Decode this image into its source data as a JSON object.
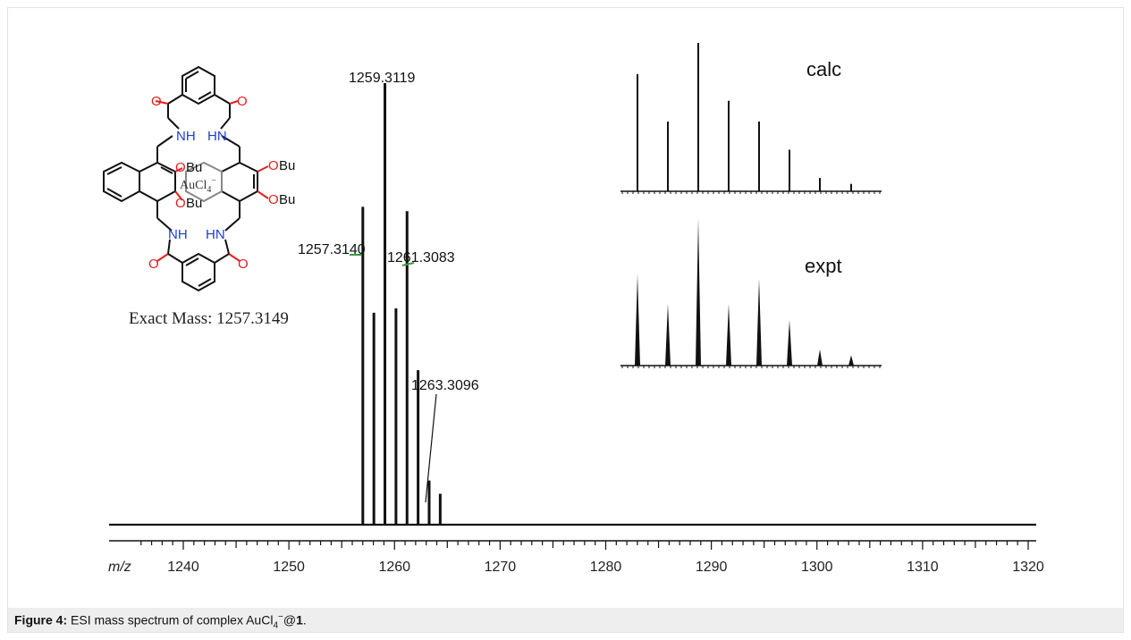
{
  "chart_data": {
    "type": "mass-spectrum",
    "xlabel": "m/z",
    "xlim": [
      1235,
      1321
    ],
    "x_ticks": [
      1240,
      1250,
      1260,
      1270,
      1280,
      1290,
      1300,
      1310,
      1320
    ],
    "peaks": [
      {
        "mz": 1257.0,
        "intensity": 0.72
      },
      {
        "mz": 1258.0,
        "intensity": 0.48
      },
      {
        "mz": 1259.0,
        "intensity": 1.0
      },
      {
        "mz": 1260.0,
        "intensity": 0.49
      },
      {
        "mz": 1261.0,
        "intensity": 0.71
      },
      {
        "mz": 1262.0,
        "intensity": 0.35
      },
      {
        "mz": 1263.0,
        "intensity": 0.1
      },
      {
        "mz": 1264.0,
        "intensity": 0.07
      }
    ],
    "peak_labels": [
      {
        "mz": 1257.0,
        "text": "1257.3140"
      },
      {
        "mz": 1259.0,
        "text": "1259.3119"
      },
      {
        "mz": 1261.0,
        "text": "1261.3083"
      },
      {
        "mz": 1263.0,
        "text": "1263.3096"
      }
    ],
    "insets": [
      {
        "label": "calc",
        "intensities": [
          0.79,
          0.47,
          1.0,
          0.61,
          0.47,
          0.28,
          0.09,
          0.05
        ]
      },
      {
        "label": "expt",
        "intensities": [
          0.62,
          0.42,
          1.0,
          0.42,
          0.59,
          0.31,
          0.11,
          0.07
        ]
      }
    ]
  },
  "structure": {
    "labels": {
      "nh": "NH",
      "hn": "HN",
      "obu": "OBu",
      "o": "O",
      "au": "AuCl",
      "au_sub": "4",
      "au_sup": "−"
    },
    "exact_mass": "Exact Mass: 1257.3149"
  },
  "caption": {
    "figure_label": "Figure 4:",
    "text_before": " ESI mass spectrum of complex AuCl",
    "sub": "4",
    "sup": "−",
    "text_mid": "@",
    "bold_id": "1",
    "text_end": "."
  },
  "colors": {
    "line": "#111111",
    "oxygen": "#e0201e",
    "nitrogen": "#1f3fd0",
    "marker": "#3a9a3a",
    "caption_bg": "#eeeeee"
  }
}
